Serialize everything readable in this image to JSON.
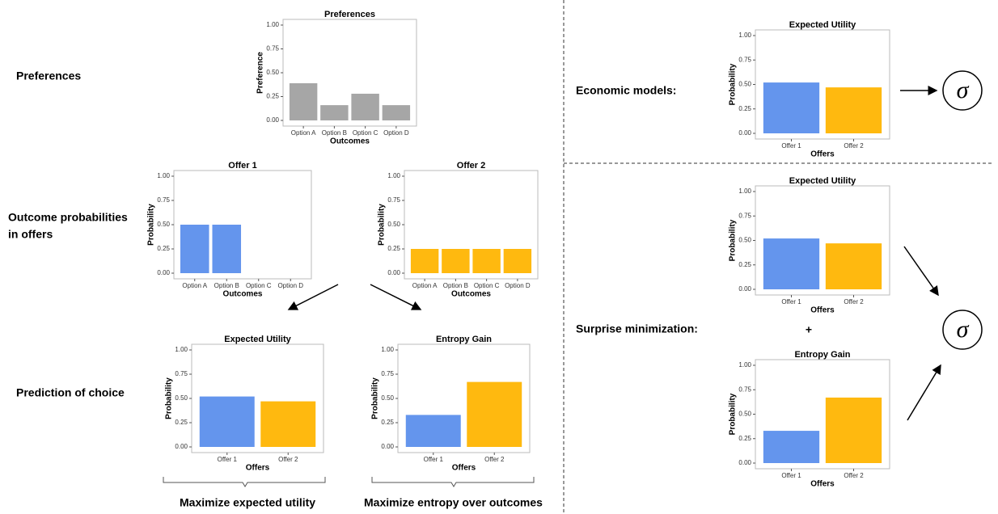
{
  "chart_data": [
    {
      "type": "bar",
      "title": "Preferences",
      "xlabel": "Outcomes",
      "ylabel": "Preference",
      "categories": [
        "Option A",
        "Option B",
        "Option C",
        "Option D"
      ],
      "values": [
        0.39,
        0.16,
        0.28,
        0.16
      ],
      "color": "#a6a6a6",
      "ylim": [
        0,
        1
      ],
      "yticks": [
        {
          "value": 0,
          "label": "0.00"
        },
        {
          "value": 0.25,
          "label": "0.25"
        },
        {
          "value": 0.5,
          "label": "0.50"
        },
        {
          "value": 0.75,
          "label": "0.75"
        },
        {
          "value": 1,
          "label": "1.00"
        }
      ]
    },
    {
      "type": "bar",
      "title": "Offer 1",
      "xlabel": "Outcomes",
      "ylabel": "Probability",
      "categories": [
        "Option A",
        "Option B",
        "Option C",
        "Option D"
      ],
      "values": [
        0.5,
        0.5,
        0,
        0
      ],
      "color": "#6495ed",
      "ylim": [
        0,
        1
      ],
      "yticks": [
        {
          "value": 0,
          "label": "0.00"
        },
        {
          "value": 0.25,
          "label": "0.25"
        },
        {
          "value": 0.5,
          "label": "0.50"
        },
        {
          "value": 0.75,
          "label": "0.75"
        },
        {
          "value": 1,
          "label": "1.00"
        }
      ]
    },
    {
      "type": "bar",
      "title": "Offer 2",
      "xlabel": "Outcomes",
      "ylabel": "Probability",
      "categories": [
        "Option A",
        "Option B",
        "Option C",
        "Option D"
      ],
      "values": [
        0.25,
        0.25,
        0.25,
        0.25
      ],
      "color": "#ffb90f",
      "ylim": [
        0,
        1
      ],
      "yticks": [
        {
          "value": 0,
          "label": "0.00"
        },
        {
          "value": 0.25,
          "label": "0.25"
        },
        {
          "value": 0.5,
          "label": "0.50"
        },
        {
          "value": 0.75,
          "label": "0.75"
        },
        {
          "value": 1,
          "label": "1.00"
        }
      ]
    },
    {
      "type": "bar",
      "title": "Expected Utility",
      "xlabel": "Offers",
      "ylabel": "Probability",
      "categories": [
        "Offer 1",
        "Offer 2"
      ],
      "values": [
        0.52,
        0.47
      ],
      "colors": [
        "#6495ed",
        "#ffb90f"
      ],
      "ylim": [
        0,
        1
      ],
      "yticks": [
        {
          "value": 0,
          "label": "0.00"
        },
        {
          "value": 0.25,
          "label": "0.25"
        },
        {
          "value": 0.5,
          "label": "0.50"
        },
        {
          "value": 0.75,
          "label": "0.75"
        },
        {
          "value": 1,
          "label": "1.00"
        }
      ]
    },
    {
      "type": "bar",
      "title": "Entropy Gain",
      "xlabel": "Offers",
      "ylabel": "Probability",
      "categories": [
        "Offer 1",
        "Offer 2"
      ],
      "values": [
        0.33,
        0.67
      ],
      "colors": [
        "#6495ed",
        "#ffb90f"
      ],
      "ylim": [
        0,
        1
      ],
      "yticks": [
        {
          "value": 0,
          "label": "0.00"
        },
        {
          "value": 0.25,
          "label": "0.25"
        },
        {
          "value": 0.5,
          "label": "0.50"
        },
        {
          "value": 0.75,
          "label": "0.75"
        },
        {
          "value": 1,
          "label": "1.00"
        }
      ]
    },
    {
      "type": "bar",
      "title": "Expected Utility",
      "xlabel": "Offers",
      "ylabel": "Probability",
      "categories": [
        "Offer 1",
        "Offer 2"
      ],
      "values": [
        0.52,
        0.47
      ],
      "colors": [
        "#6495ed",
        "#ffb90f"
      ],
      "ylim": [
        0,
        1
      ],
      "yticks": [
        {
          "value": 0,
          "label": "0.00"
        },
        {
          "value": 0.25,
          "label": "0.25"
        },
        {
          "value": 0.5,
          "label": "0.50"
        },
        {
          "value": 0.75,
          "label": "0.75"
        },
        {
          "value": 1,
          "label": "1.00"
        }
      ]
    },
    {
      "type": "bar",
      "title": "Expected Utility",
      "xlabel": "Offers",
      "ylabel": "Probability",
      "categories": [
        "Offer 1",
        "Offer 2"
      ],
      "values": [
        0.52,
        0.47
      ],
      "colors": [
        "#6495ed",
        "#ffb90f"
      ],
      "ylim": [
        0,
        1
      ],
      "yticks": [
        {
          "value": 0,
          "label": "0.00"
        },
        {
          "value": 0.25,
          "label": "0.25"
        },
        {
          "value": 0.5,
          "label": "0.50"
        },
        {
          "value": 0.75,
          "label": "0.75"
        },
        {
          "value": 1,
          "label": "1.00"
        }
      ]
    },
    {
      "type": "bar",
      "title": "Entropy Gain",
      "xlabel": "Offers",
      "ylabel": "Probability",
      "categories": [
        "Offer 1",
        "Offer 2"
      ],
      "values": [
        0.33,
        0.67
      ],
      "colors": [
        "#6495ed",
        "#ffb90f"
      ],
      "ylim": [
        0,
        1
      ],
      "yticks": [
        {
          "value": 0,
          "label": "0.00"
        },
        {
          "value": 0.25,
          "label": "0.25"
        },
        {
          "value": 0.5,
          "label": "0.50"
        },
        {
          "value": 0.75,
          "label": "0.75"
        },
        {
          "value": 1,
          "label": "1.00"
        }
      ]
    }
  ],
  "annotations": {
    "preferences": "Preferences",
    "outcome_probabilities": [
      "Outcome probabilities",
      "in offers"
    ],
    "prediction": "Prediction of choice",
    "maximize_utility": "Maximize expected utility",
    "maximize_entropy": "Maximize entropy over outcomes",
    "economic": "Economic models:",
    "surprise": "Surprise minimization:",
    "plus": "+",
    "sigma": "σ"
  }
}
